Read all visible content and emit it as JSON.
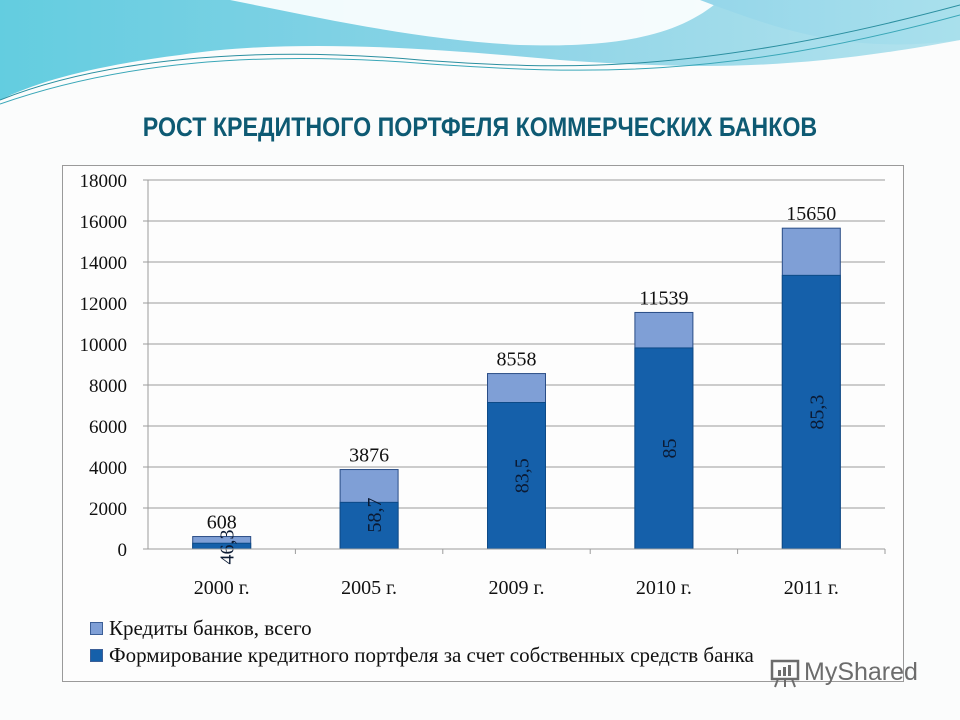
{
  "slide": {
    "title": "РОСТ КРЕДИТНОГО ПОРТФЕЛЯ КОММЕРЧЕСКИХ БАНКОВ",
    "title_color": "#0e5a73",
    "watermark": "MyShared"
  },
  "chart_data": {
    "type": "bar",
    "stacked": false,
    "overlapped": true,
    "title": "РОСТ КРЕДИТНОГО ПОРТФЕЛЯ КОММЕРЧЕСКИХ БАНКОВ",
    "xlabel": "",
    "ylabel": "",
    "ylim": [
      0,
      18000
    ],
    "yticks": [
      0,
      2000,
      4000,
      6000,
      8000,
      10000,
      12000,
      14000,
      16000,
      18000
    ],
    "grid": true,
    "legend_position": "bottom",
    "categories": [
      "2000 г.",
      "2005 г.",
      "2009 г.",
      "2010 г.",
      "2011 г."
    ],
    "series": [
      {
        "name": "Кредиты банков, всего",
        "color": "#7f9fd6",
        "values": [
          608,
          3876,
          8558,
          11539,
          15650
        ],
        "labels": [
          "608",
          "3876",
          "8558",
          "11539",
          "15650"
        ]
      },
      {
        "name": "Формирование кредитного портфеля за счет собственных средств банка",
        "color": "#1560aa",
        "values": [
          281,
          2275,
          7146,
          9808,
          13349
        ],
        "share_percent": [
          46.3,
          58.7,
          83.5,
          85,
          85.3
        ],
        "labels": [
          "46,3",
          "58,7",
          "83,5",
          "85",
          "85,3"
        ]
      }
    ]
  },
  "legend": {
    "items": [
      {
        "label": "Кредиты банков, всего",
        "color": "#7f9fd6"
      },
      {
        "label": "Формирование кредитного портфеля за счет собственных средств банка",
        "color": "#1560aa"
      }
    ]
  }
}
